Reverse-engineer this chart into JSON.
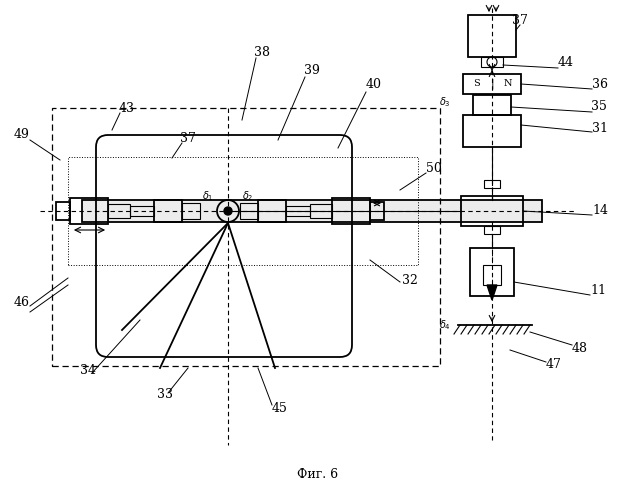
{
  "title": "Фиг. 6",
  "bg_color": "#ffffff",
  "fig_w": 6.36,
  "fig_h": 5.0,
  "dpi": 100
}
